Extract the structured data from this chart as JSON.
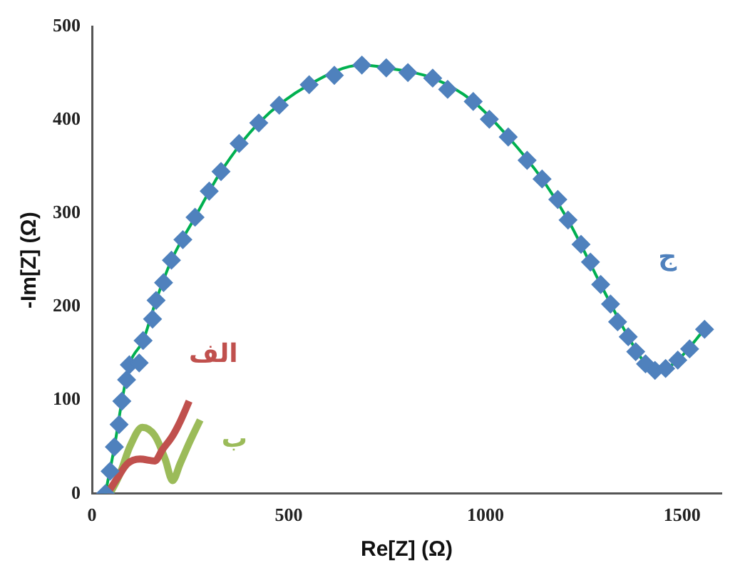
{
  "chart_data": {
    "type": "scatter",
    "xlabel": "Re[Z] (Ω)",
    "ylabel": "-Im[Z] (Ω)",
    "xlim": [
      0,
      1600
    ],
    "xticks": [
      0,
      500,
      1000,
      1500
    ],
    "ylim": [
      0,
      500
    ],
    "yticks": [
      0,
      100,
      200,
      300,
      400,
      500
    ],
    "grid": false,
    "legend": false,
    "marker": "diamond",
    "series": [
      {
        "name": "الف",
        "color": "#c0504d",
        "type": "line",
        "marker": "none",
        "x": [
          39,
          65,
          90,
          122,
          160,
          179,
          205,
          224,
          247
        ],
        "values": [
          0,
          17,
          32,
          37,
          35,
          47,
          62,
          77,
          99
        ]
      },
      {
        "name": "ب",
        "color": "#9bbb59",
        "type": "line",
        "marker": "none",
        "x": [
          46,
          71,
          97,
          128,
          160,
          186,
          205,
          224,
          249,
          275
        ],
        "values": [
          0,
          21,
          51,
          71,
          62,
          37,
          14,
          32,
          56,
          79
        ]
      },
      {
        "color": "#00b050",
        "type": "line",
        "marker": "none",
        "x": [
          34,
          57,
          76,
          95,
          130,
          163,
          202,
          262,
          328,
          424,
          552,
          686,
          748,
          866,
          969,
          1058,
          1144,
          1210,
          1293,
          1363,
          1407,
          1431,
          1458,
          1489,
          1557
        ],
        "values": [
          0,
          50,
          99,
          138,
          164,
          207,
          250,
          296,
          345,
          397,
          438,
          459,
          456,
          445,
          420,
          382,
          337,
          293,
          224,
          168,
          139,
          132,
          134,
          143,
          176
        ]
      },
      {
        "name": "ج",
        "color": "#4f81bd",
        "x": [
          34,
          46,
          57,
          69,
          76,
          88,
          95,
          120,
          130,
          154,
          163,
          182,
          202,
          231,
          262,
          298,
          328,
          374,
          424,
          476,
          552,
          616,
          686,
          748,
          803,
          866,
          904,
          969,
          1010,
          1058,
          1106,
          1144,
          1184,
          1210,
          1243,
          1267,
          1293,
          1318,
          1336,
          1363,
          1382,
          1407,
          1431,
          1458,
          1489,
          1519,
          1557
        ],
        "values": [
          0,
          24,
          50,
          74,
          99,
          122,
          138,
          140,
          164,
          187,
          207,
          226,
          250,
          272,
          296,
          324,
          345,
          375,
          397,
          416,
          438,
          448,
          459,
          456,
          451,
          445,
          433,
          420,
          401,
          382,
          357,
          337,
          315,
          293,
          267,
          248,
          224,
          203,
          184,
          168,
          152,
          139,
          132,
          134,
          143,
          155,
          176
        ]
      }
    ]
  }
}
